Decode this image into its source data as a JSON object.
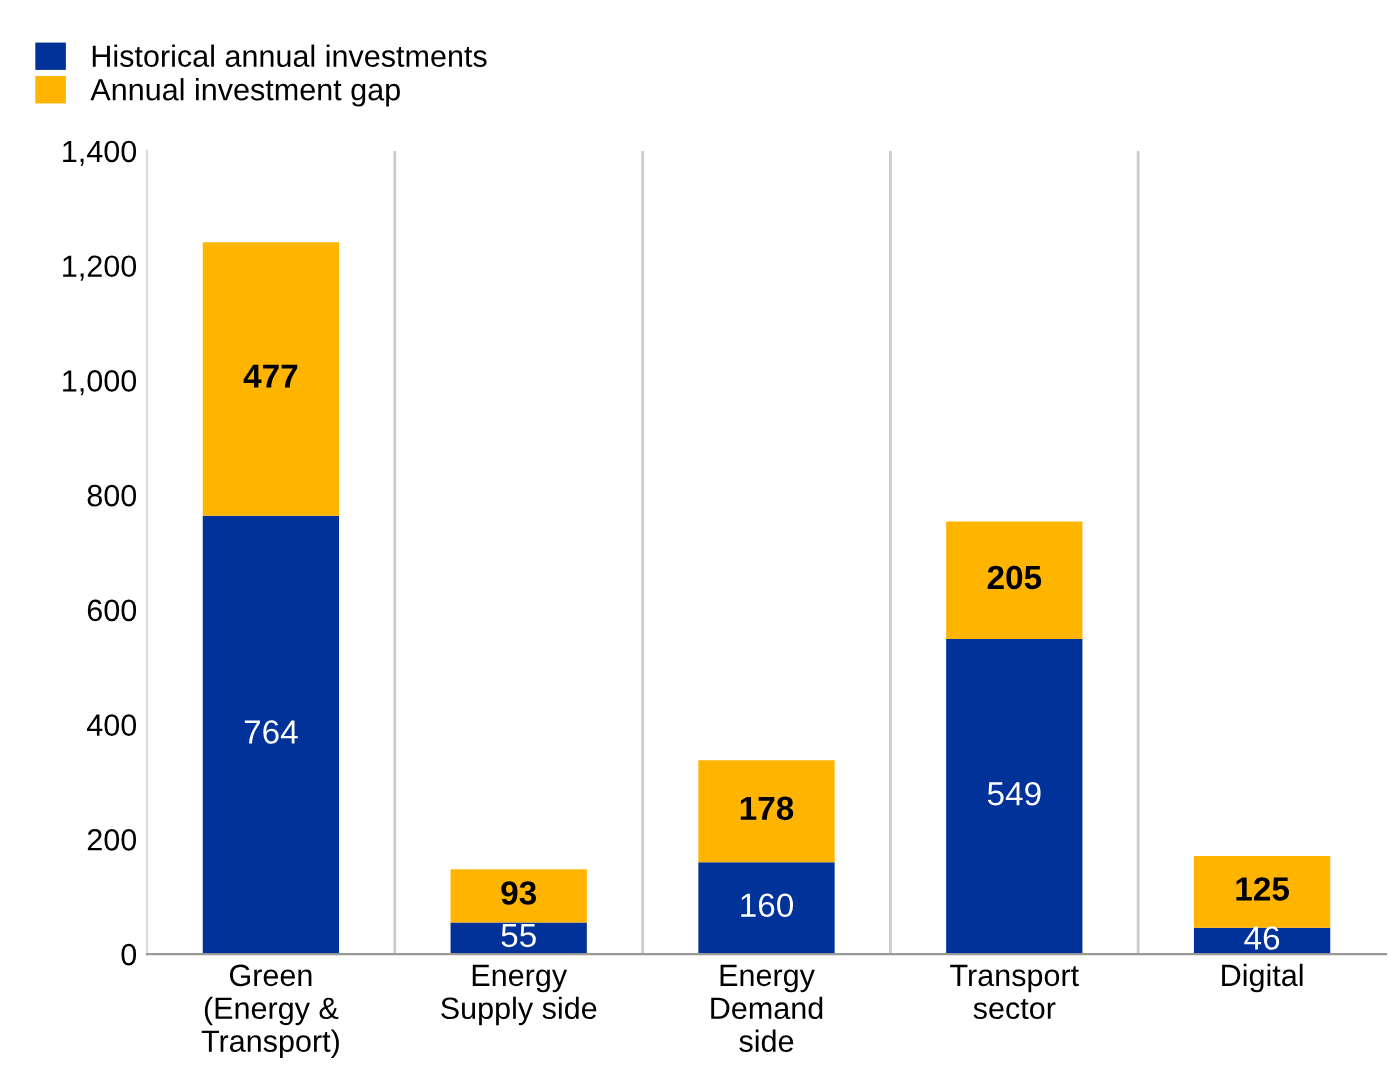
{
  "chart_data": {
    "type": "bar",
    "stacked": true,
    "categories": [
      "Green\n(Energy &\nTransport)",
      "Energy\nSupply side",
      "Energy\nDemand\nside",
      "Transport\nsector",
      "Digital"
    ],
    "series": [
      {
        "name": "Historical annual investments",
        "color": "#003299",
        "values": [
          764,
          55,
          160,
          549,
          46
        ]
      },
      {
        "name": "Annual investment gap",
        "color": "#ffb400",
        "values": [
          477,
          93,
          178,
          205,
          125
        ]
      }
    ],
    "ylim": [
      0,
      1400
    ],
    "yticks": [
      0,
      200,
      400,
      600,
      800,
      {
        "value": 1000,
        "label": "1,000"
      },
      {
        "value": 1200,
        "label": "1,200"
      },
      {
        "value": 1400,
        "label": "1,400"
      }
    ],
    "data_labels": true,
    "grid": "x",
    "legend": "top left"
  }
}
